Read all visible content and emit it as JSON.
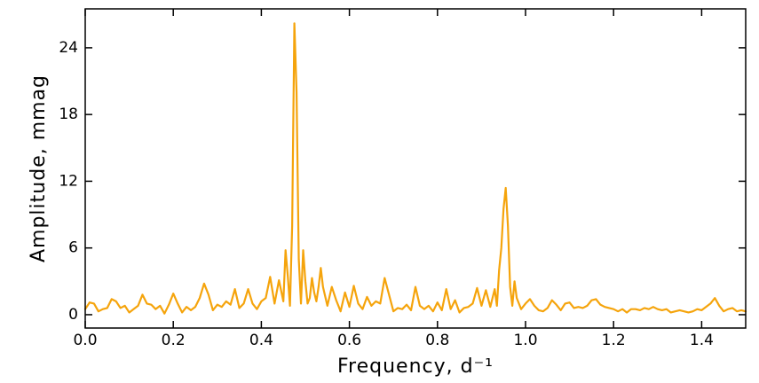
{
  "chart_data": {
    "type": "line",
    "x_label": "Frequency, d⁻¹",
    "y_label": "Amplitude, mmag",
    "xlim": [
      0,
      1.5
    ],
    "ylim": [
      -1.2,
      27.5
    ],
    "xticks": [
      {
        "value": 0,
        "label": "0.0"
      },
      0.2,
      0.4,
      0.6,
      0.8,
      {
        "value": 1,
        "label": "1.0"
      },
      1.2,
      1.4
    ],
    "yticks": [
      0,
      6,
      12,
      18,
      24
    ],
    "x": [
      0,
      0.01,
      0.02,
      0.03,
      0.04,
      0.05,
      0.06,
      0.07,
      0.08,
      0.09,
      0.1,
      0.11,
      0.12,
      0.13,
      0.14,
      0.15,
      0.16,
      0.17,
      0.18,
      0.19,
      0.2,
      0.21,
      0.22,
      0.23,
      0.24,
      0.25,
      0.26,
      0.27,
      0.28,
      0.29,
      0.3,
      0.31,
      0.32,
      0.33,
      0.34,
      0.35,
      0.36,
      0.37,
      0.38,
      0.39,
      0.4,
      0.41,
      0.42,
      0.43,
      0.44,
      0.45,
      0.455,
      0.46,
      0.465,
      0.47,
      0.475,
      0.48,
      0.485,
      0.49,
      0.495,
      0.5,
      0.505,
      0.51,
      0.515,
      0.52,
      0.525,
      0.53,
      0.535,
      0.54,
      0.55,
      0.56,
      0.57,
      0.58,
      0.59,
      0.6,
      0.61,
      0.62,
      0.63,
      0.64,
      0.65,
      0.66,
      0.67,
      0.68,
      0.69,
      0.7,
      0.71,
      0.72,
      0.73,
      0.74,
      0.75,
      0.76,
      0.77,
      0.78,
      0.79,
      0.8,
      0.81,
      0.82,
      0.83,
      0.84,
      0.85,
      0.86,
      0.87,
      0.88,
      0.89,
      0.9,
      0.91,
      0.92,
      0.93,
      0.935,
      0.94,
      0.945,
      0.95,
      0.955,
      0.96,
      0.965,
      0.97,
      0.975,
      0.98,
      0.99,
      1,
      1.01,
      1.02,
      1.03,
      1.04,
      1.05,
      1.06,
      1.07,
      1.08,
      1.09,
      1.1,
      1.11,
      1.12,
      1.13,
      1.14,
      1.15,
      1.16,
      1.17,
      1.18,
      1.19,
      1.2,
      1.21,
      1.22,
      1.23,
      1.24,
      1.25,
      1.26,
      1.27,
      1.28,
      1.29,
      1.3,
      1.31,
      1.32,
      1.33,
      1.34,
      1.35,
      1.36,
      1.37,
      1.38,
      1.39,
      1.4,
      1.41,
      1.42,
      1.43,
      1.44,
      1.45,
      1.46,
      1.47,
      1.48,
      1.49,
      1.5
    ],
    "series": [
      {
        "color": "#f5a40c",
        "values": [
          0.5,
          1.1,
          1.0,
          0.3,
          0.5,
          0.6,
          1.4,
          1.2,
          0.6,
          0.8,
          0.2,
          0.5,
          0.8,
          1.8,
          1.0,
          0.9,
          0.5,
          0.8,
          0.1,
          0.9,
          1.9,
          1.0,
          0.2,
          0.7,
          0.4,
          0.7,
          1.5,
          2.8,
          1.8,
          0.4,
          0.9,
          0.7,
          1.2,
          0.9,
          2.3,
          0.6,
          1.0,
          2.3,
          1.0,
          0.5,
          1.2,
          1.5,
          3.4,
          1.0,
          3.1,
          1.2,
          5.8,
          3.5,
          0.8,
          8,
          26.2,
          20,
          5,
          1.0,
          5.8,
          3.0,
          1.0,
          1.5,
          3.3,
          2.0,
          1.2,
          2.5,
          4.2,
          2.5,
          0.8,
          2.5,
          1.3,
          0.3,
          2.0,
          0.7,
          2.6,
          1.0,
          0.5,
          1.6,
          0.8,
          1.2,
          1.0,
          3.3,
          1.8,
          0.3,
          0.6,
          0.5,
          0.9,
          0.4,
          2.5,
          0.8,
          0.5,
          0.8,
          0.3,
          1.1,
          0.4,
          2.3,
          0.5,
          1.3,
          0.2,
          0.6,
          0.7,
          1.0,
          2.4,
          0.8,
          2.2,
          0.7,
          2.3,
          0.8,
          4,
          6,
          9.5,
          11.4,
          8,
          2.5,
          0.8,
          3.0,
          1.5,
          0.5,
          1.0,
          1.4,
          0.8,
          0.4,
          0.3,
          0.6,
          1.3,
          0.9,
          0.4,
          1.0,
          1.1,
          0.6,
          0.7,
          0.6,
          0.8,
          1.3,
          1.4,
          0.9,
          0.7,
          0.6,
          0.5,
          0.3,
          0.5,
          0.2,
          0.5,
          0.5,
          0.4,
          0.6,
          0.5,
          0.7,
          0.5,
          0.4,
          0.5,
          0.2,
          0.3,
          0.4,
          0.3,
          0.2,
          0.3,
          0.5,
          0.4,
          0.7,
          1.0,
          1.5,
          0.8,
          0.3,
          0.5,
          0.6,
          0.3,
          0.4,
          0.3
        ]
      }
    ]
  }
}
